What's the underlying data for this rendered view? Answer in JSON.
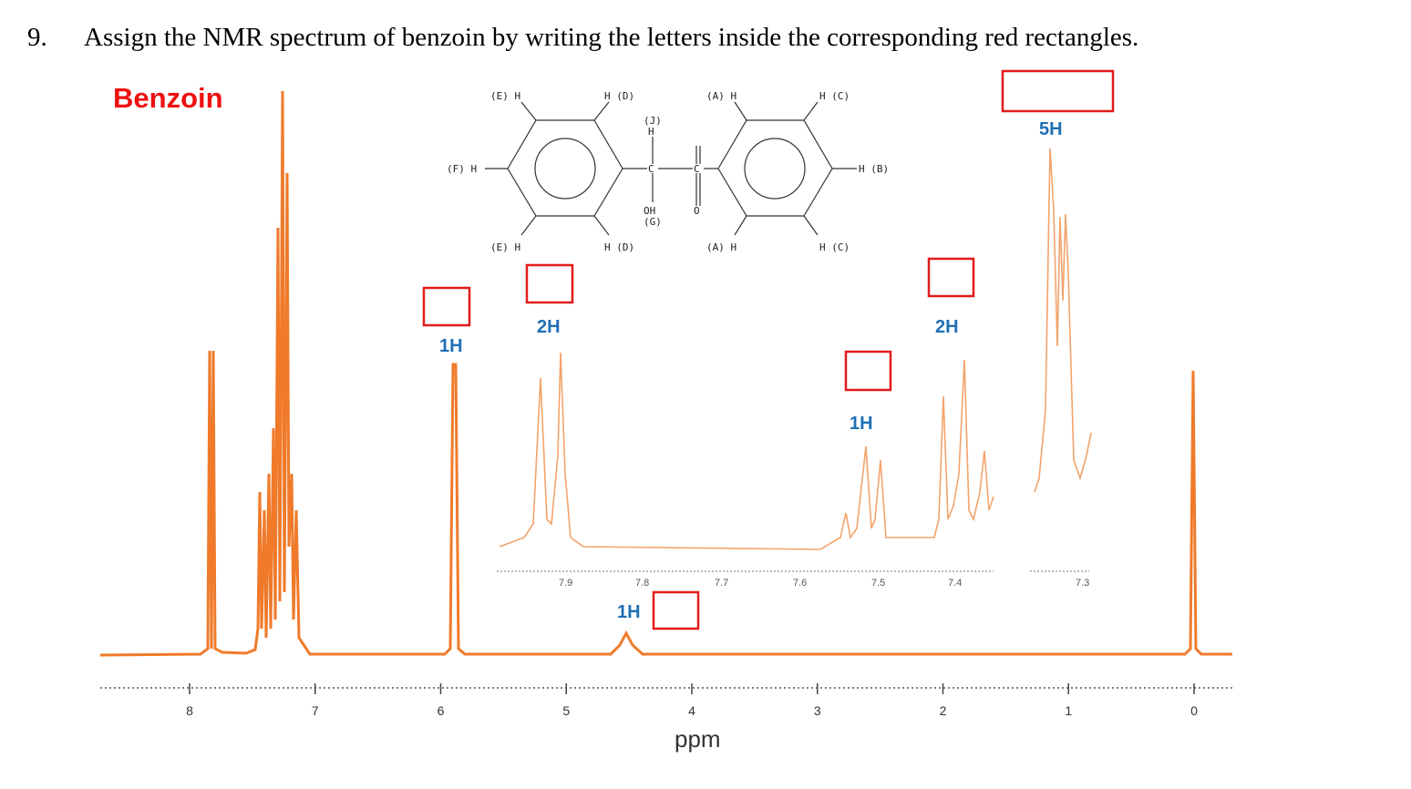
{
  "question": {
    "number": "9.",
    "text": "Assign the NMR spectrum of benzoin by writing the letters inside the corresponding red rectangles."
  },
  "title": "Benzoin",
  "structure": {
    "labels": [
      "(E) H",
      "H (D)",
      "(A) H",
      "H (C)",
      "(J)",
      "H",
      "(F) H",
      "C",
      "C",
      "H (B)",
      "OH",
      "(G)",
      "O",
      "(E) H",
      "H (D)",
      "(A) H",
      "H (C)"
    ]
  },
  "integrations": [
    "1H",
    "2H",
    "1H",
    "1H",
    "2H",
    "5H"
  ],
  "axis": {
    "ticks": [
      8,
      7,
      6,
      5,
      4,
      3,
      2,
      1,
      0
    ],
    "label": "ppm"
  },
  "inset_axis": {
    "ticks": [
      7.9,
      7.8,
      7.7,
      7.6,
      7.5,
      7.4,
      7.3
    ]
  }
}
